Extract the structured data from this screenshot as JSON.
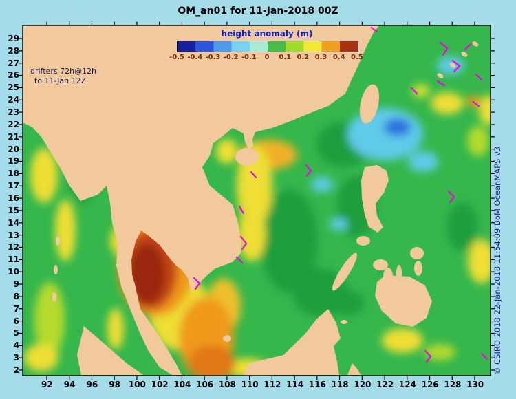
{
  "title": "OM_an01 for 11-Jan-2018 00Z",
  "colorbar": {
    "label": "height anomaly (m)",
    "ticks": [
      "-0.5",
      "-0.4",
      "-0.3",
      "-0.2",
      "-0.1",
      "0",
      "0.1",
      "0.2",
      "0.3",
      "0.4",
      "0.5"
    ],
    "band_colors": [
      "#1a1f9c",
      "#2d55d8",
      "#4f9ae6",
      "#7bd2ee",
      "#a8ead2",
      "#49bc48",
      "#a5d92e",
      "#f2e838",
      "#f0a01e",
      "#a83210"
    ]
  },
  "annotations": {
    "drifters_line1": "drifters 72h@12h",
    "drifters_line2": "to 11-Jan 12Z",
    "credit": "© CSIRO 2018   22-Jan-2018 11:54:09 BoM OceanMAPS v3"
  },
  "axes": {
    "x_ticks": [
      "92",
      "94",
      "96",
      "98",
      "100",
      "102",
      "104",
      "106",
      "108",
      "110",
      "112",
      "114",
      "116",
      "118",
      "120",
      "122",
      "124",
      "126",
      "128",
      "130"
    ],
    "y_ticks": [
      "29",
      "28",
      "27",
      "26",
      "25",
      "24",
      "23",
      "22",
      "21",
      "20",
      "19",
      "18",
      "17",
      "16",
      "15",
      "14",
      "13",
      "12",
      "11",
      "10",
      "9",
      "8",
      "7",
      "6",
      "5",
      "4",
      "3",
      "2"
    ]
  },
  "map": {
    "land_color": "#f2c99c",
    "ocean_base_color": "#35b74c",
    "drifter_track_color": "#f400e8",
    "background_color": "#a5dcea"
  },
  "chart_data": {
    "type": "heatmap",
    "title": "OM_an01 for 11-Jan-2018 00Z",
    "variable": "sea surface height anomaly",
    "units": "m",
    "value_range": [
      -0.5,
      0.5
    ],
    "lon_range_deg_e": [
      90,
      131.5
    ],
    "lat_range_deg_n": [
      1.5,
      30
    ],
    "features": [
      "Strong positive anomaly (+0.4 to +0.5 m, dark red core) filling the Gulf of Thailand",
      "Positive anomaly tongue (+0.2 to +0.3 m, orange) extending southeast past the Mekong Delta toward the Java Sea",
      "Yellow band (~+0.15 m) offshore of the central Vietnam coast",
      "Negative anomaly patch (-0.2 to -0.3 m, blue core) east of the Luzon Strait near 123E 22N",
      "Scattered weak negative (light blue) patches in the northern and central South China Sea",
      "Background field mostly +0.05 to +0.1 m (green) with magenta drifter tracks overlaid"
    ]
  }
}
